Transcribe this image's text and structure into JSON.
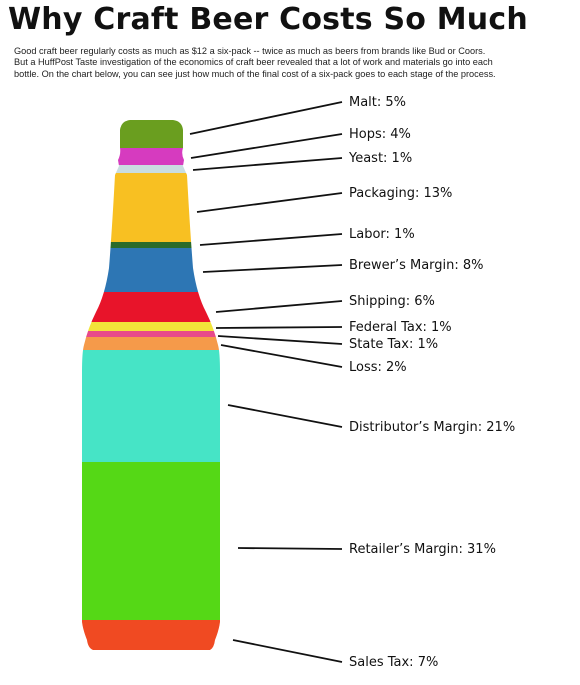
{
  "title": "Why Craft Beer Costs So Much",
  "intro": [
    "Good craft beer regularly costs as much as $12 a six-pack -- twice as much as beers from brands like Bud or Coors.",
    "But a HuffPost Taste investigation of the economics of craft beer revealed that a lot of work and materials go into each",
    "bottle. On the chart below, you can see just how much of the final cost of a six-pack goes to each stage of the process."
  ],
  "chart_data": {
    "type": "bar",
    "orientation": "stacked-vertical-bottle",
    "unit": "%",
    "categories": [
      "Malt",
      "Hops",
      "Yeast",
      "Packaging",
      "Labor",
      "Brewer’s Margin",
      "Shipping",
      "Federal Tax",
      "State Tax",
      "Loss",
      "Distributor’s Margin",
      "Retailer’s Margin",
      "Sales Tax"
    ],
    "values": [
      5,
      4,
      1,
      13,
      1,
      8,
      6,
      1,
      1,
      2,
      21,
      31,
      7
    ],
    "labels": [
      "Malt: 5%",
      "Hops: 4%",
      "Yeast: 1%",
      "Packaging: 13%",
      "Labor: 1%",
      "Brewer’s Margin: 8%",
      "Shipping: 6%",
      "Federal Tax: 1%",
      "State Tax: 1%",
      "Loss: 2%",
      "Distributor’s Margin: 21%",
      "Retailer’s Margin: 31%",
      "Sales Tax: 7%"
    ],
    "colors": [
      "#6a9e1f",
      "#d63bbf",
      "#c9dde0",
      "#f8c022",
      "#2a6b2a",
      "#2d76b4",
      "#e8142a",
      "#f2e43a",
      "#e84a8a",
      "#f59a4a",
      "#46e4c6",
      "#55d816",
      "#f04a22"
    ]
  }
}
